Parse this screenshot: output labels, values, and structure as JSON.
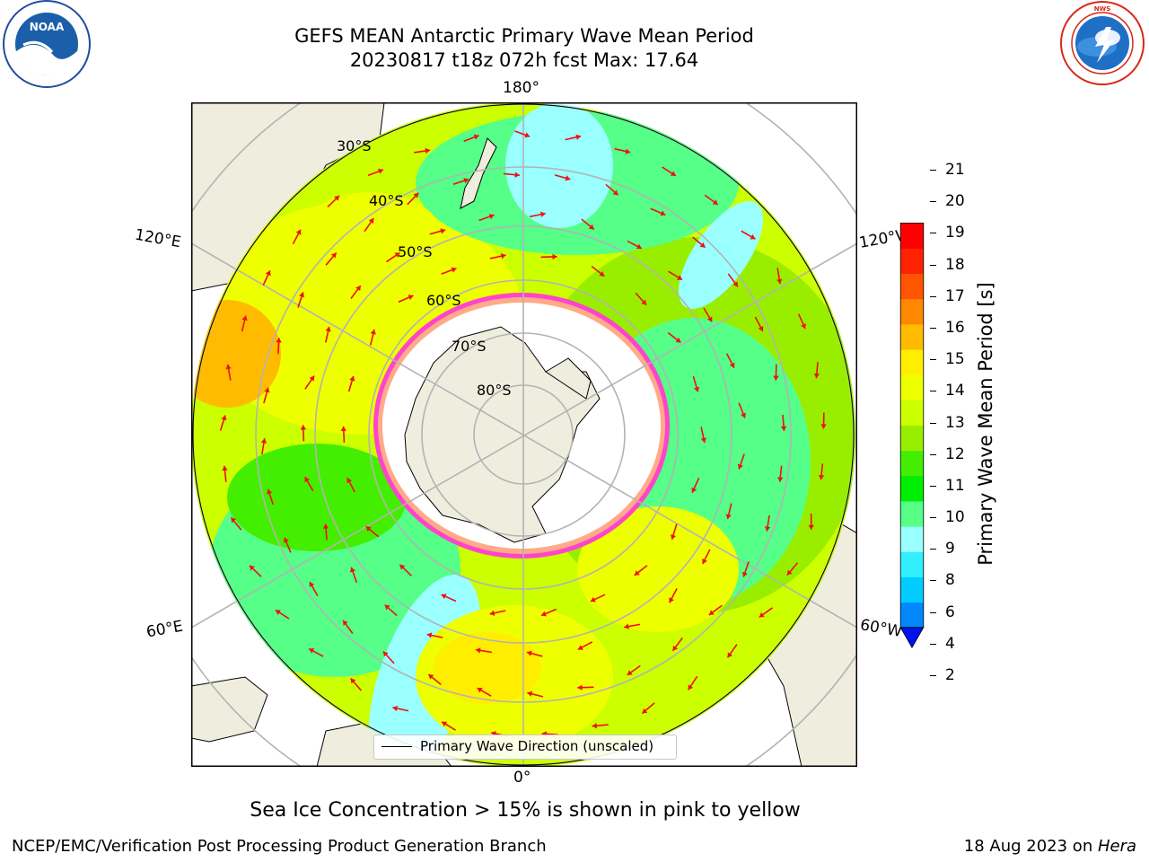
{
  "title": {
    "line1": "GEFS MEAN Antarctic Primary Wave Mean Period",
    "line2": "20230817 t18z 072h fcst   Max: 17.64"
  },
  "logos": {
    "noaa": "NOAA",
    "noaa_ring": "NATIONAL OCEANIC AND ATMOSPHERIC ADMINISTRATION · U.S. DEPARTMENT OF COMMERCE",
    "nws_ring": "NATIONAL WEATHER SERVICE"
  },
  "map": {
    "projection": "south polar stereographic",
    "lon_labels": {
      "top": "180°",
      "bottom": "0°",
      "upper_left": "120°E",
      "upper_right": "120°W",
      "lower_left": "60°E",
      "lower_right": "60°W"
    },
    "lat_labels": [
      "30°S",
      "40°S",
      "50°S",
      "60°S",
      "70°S",
      "80°S"
    ],
    "legend": "Primary Wave Direction (unscaled)"
  },
  "colorbar": {
    "label": "Primary Wave Mean Period [s]",
    "ticks": [
      "2",
      "4",
      "6",
      "8",
      "9",
      "10",
      "11",
      "12",
      "13",
      "14",
      "15",
      "16",
      "17",
      "18",
      "19",
      "20",
      "21"
    ],
    "colors": [
      "#0044ff",
      "#0088ff",
      "#00ccff",
      "#33eeff",
      "#99ffff",
      "#55ff88",
      "#00ee00",
      "#44ee00",
      "#99ee00",
      "#ccff00",
      "#eeff00",
      "#ffee00",
      "#ffbb00",
      "#ff8800",
      "#ff5500",
      "#ff2200",
      "#ff0000"
    ],
    "extend_min_color": "#0011ee"
  },
  "notes": {
    "sea_ice": "Sea Ice Concentration > 15% is shown in pink to yellow",
    "credit": "NCEP/EMC/Verification Post Processing Product Generation Branch",
    "date_prefix": "18 Aug 2023 on ",
    "machine": "Hera"
  }
}
